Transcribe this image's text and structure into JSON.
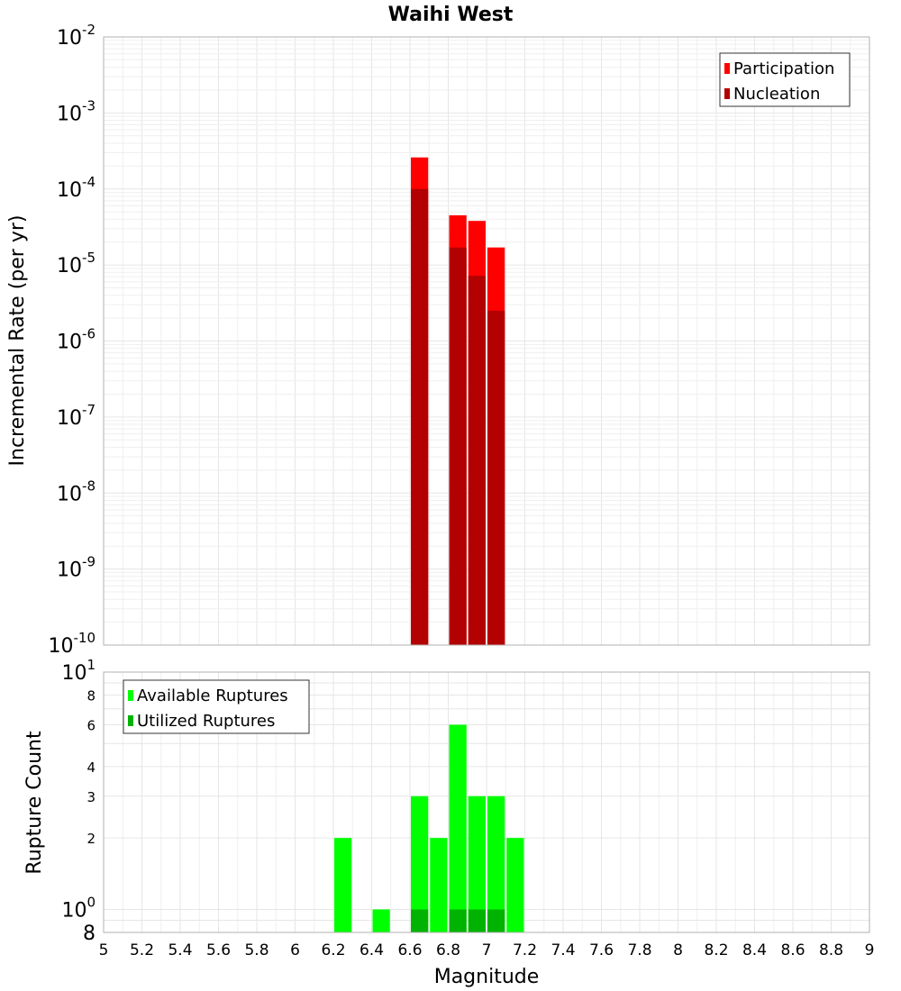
{
  "title": "Waihi West",
  "colors": {
    "participation": "#ff0000",
    "nucleation": "#b30000",
    "available": "#00ff00",
    "utilized": "#00b300"
  },
  "chart_data": [
    {
      "type": "bar",
      "scale": "log",
      "ylabel": "Incremental Rate (per yr)",
      "ylim": [
        1e-10,
        0.01
      ],
      "y_ticks": [
        {
          "base": "10",
          "exp": "-2",
          "value": 0.01
        },
        {
          "base": "10",
          "exp": "-3",
          "value": 0.001
        },
        {
          "base": "10",
          "exp": "-4",
          "value": 0.0001
        },
        {
          "base": "10",
          "exp": "-5",
          "value": 1e-05
        },
        {
          "base": "10",
          "exp": "-6",
          "value": 1e-06
        },
        {
          "base": "10",
          "exp": "-7",
          "value": 1e-07
        },
        {
          "base": "10",
          "exp": "-8",
          "value": 1e-08
        },
        {
          "base": "10",
          "exp": "-9",
          "value": 1e-09
        },
        {
          "base": "10",
          "exp": "-10",
          "value": 1e-10
        }
      ],
      "legend": {
        "position": "top-right",
        "entries": [
          "Participation",
          "Nucleation"
        ]
      },
      "series": [
        {
          "name": "Participation",
          "x": [
            6.65,
            6.85,
            6.95,
            7.05
          ],
          "values": [
            0.00026,
            4.5e-05,
            3.8e-05,
            1.7e-05
          ]
        },
        {
          "name": "Nucleation",
          "x": [
            6.65,
            6.85,
            6.95,
            7.05
          ],
          "values": [
            0.0001,
            1.7e-05,
            7.2e-06,
            2.5e-06
          ]
        }
      ]
    },
    {
      "type": "bar",
      "scale": "log",
      "ylabel": "Rupture Count",
      "xlabel": "Magnitude",
      "ylim": [
        0.8,
        10
      ],
      "y_ticks": [
        {
          "base": "10",
          "exp": "1",
          "value": 10
        },
        {
          "label": "8",
          "value": 8
        },
        {
          "label": "6",
          "value": 6
        },
        {
          "label": "4",
          "value": 4
        },
        {
          "label": "3",
          "value": 3
        },
        {
          "label": "2",
          "value": 2
        },
        {
          "base": "10",
          "exp": "0",
          "value": 1
        },
        {
          "base": "8",
          "value": 0.8
        }
      ],
      "x_ticks": [
        "5",
        "5.2",
        "5.4",
        "5.6",
        "5.8",
        "6",
        "6.2",
        "6.4",
        "6.6",
        "6.8",
        "7",
        "7.2",
        "7.4",
        "7.6",
        "7.8",
        "8",
        "8.2",
        "8.4",
        "8.6",
        "8.8",
        "9"
      ],
      "xlim": [
        5,
        9
      ],
      "legend": {
        "position": "top-left",
        "entries": [
          "Available Ruptures",
          "Utilized Ruptures"
        ]
      },
      "series": [
        {
          "name": "Available Ruptures",
          "x": [
            6.25,
            6.45,
            6.65,
            6.75,
            6.85,
            6.95,
            7.05,
            7.15
          ],
          "values": [
            2,
            1,
            3,
            2,
            6,
            3,
            3,
            2
          ]
        },
        {
          "name": "Utilized Ruptures",
          "x": [
            6.65,
            6.85,
            6.95,
            7.05
          ],
          "values": [
            1,
            1,
            1,
            1
          ]
        }
      ]
    }
  ]
}
